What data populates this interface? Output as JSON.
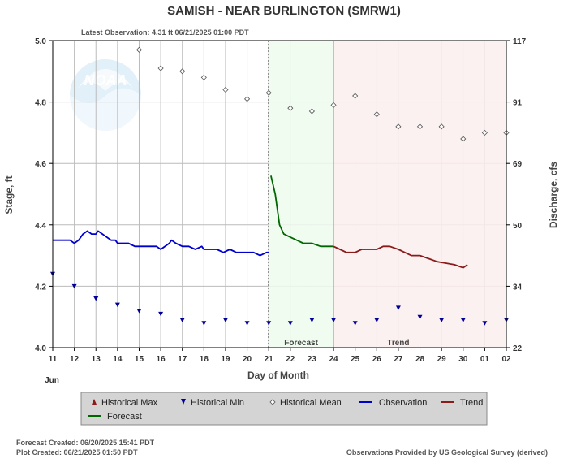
{
  "header": {
    "title": "SAMISH - NEAR BURLINGTON  (SMRW1)",
    "latest_observation": "Latest Observation: 4.31 ft 06/21/2025 01:00 PDT"
  },
  "logo_text": "NOAA",
  "chart_data": {
    "type": "line",
    "title": "SAMISH - NEAR BURLINGTON  (SMRW1)",
    "xlabel": "Day of Month",
    "month_label": "Jun",
    "ylabel_left": "Stage, ft",
    "ylabel_right": "Discharge, cfs",
    "x_ticks": [
      "11",
      "12",
      "13",
      "14",
      "15",
      "16",
      "17",
      "18",
      "19",
      "20",
      "21",
      "22",
      "23",
      "24",
      "25",
      "26",
      "27",
      "28",
      "29",
      "30",
      "01",
      "02"
    ],
    "xlim": [
      11,
      32
    ],
    "ylim_left": [
      4.0,
      5.0
    ],
    "y_ticks_left": [
      "4.0",
      "4.2",
      "4.4",
      "4.6",
      "4.8",
      "5.0"
    ],
    "y_ticks_right": [
      "22",
      "34",
      "50",
      "69",
      "91",
      "117"
    ],
    "grid": true,
    "zones": {
      "observed_end": 21.0,
      "forecast_start": 21.0,
      "forecast_end": 24.0,
      "forecast_label": "Forecast",
      "forecast_color": "#effcef",
      "trend_start": 24.0,
      "trend_end": 32.0,
      "trend_label": "Trend",
      "trend_color": "#fcefef"
    },
    "series": [
      {
        "name": "Observation",
        "color": "#0000cc",
        "x": [
          11.0,
          11.2,
          11.4,
          11.6,
          11.8,
          12.0,
          12.2,
          12.4,
          12.6,
          12.8,
          13.0,
          13.1,
          13.3,
          13.5,
          13.7,
          13.9,
          14.0,
          14.2,
          14.5,
          14.8,
          15.0,
          15.2,
          15.5,
          15.8,
          16.0,
          16.2,
          16.4,
          16.5,
          16.7,
          17.0,
          17.3,
          17.6,
          17.9,
          18.0,
          18.3,
          18.6,
          18.9,
          19.2,
          19.5,
          19.8,
          20.0,
          20.3,
          20.6,
          20.9,
          21.0
        ],
        "y": [
          4.35,
          4.35,
          4.35,
          4.35,
          4.35,
          4.34,
          4.35,
          4.37,
          4.38,
          4.37,
          4.37,
          4.38,
          4.37,
          4.36,
          4.35,
          4.35,
          4.34,
          4.34,
          4.34,
          4.33,
          4.33,
          4.33,
          4.33,
          4.33,
          4.32,
          4.33,
          4.34,
          4.35,
          4.34,
          4.33,
          4.33,
          4.32,
          4.33,
          4.32,
          4.32,
          4.32,
          4.31,
          4.32,
          4.31,
          4.31,
          4.31,
          4.31,
          4.3,
          4.31,
          4.31
        ]
      },
      {
        "name": "Forecast",
        "color": "#006600",
        "x": [
          21.1,
          21.3,
          21.5,
          21.7,
          22.0,
          22.3,
          22.6,
          23.0,
          23.4,
          23.8,
          24.0
        ],
        "y": [
          4.56,
          4.5,
          4.4,
          4.37,
          4.36,
          4.35,
          4.34,
          4.34,
          4.33,
          4.33,
          4.33
        ]
      },
      {
        "name": "Trend",
        "color": "#8b1a1a",
        "x": [
          24.0,
          24.3,
          24.6,
          25.0,
          25.3,
          25.6,
          26.0,
          26.3,
          26.6,
          27.0,
          27.3,
          27.6,
          28.0,
          28.4,
          28.8,
          29.2,
          29.6,
          30.0,
          30.2
        ],
        "y": [
          4.33,
          4.32,
          4.31,
          4.31,
          4.32,
          4.32,
          4.32,
          4.33,
          4.33,
          4.32,
          4.31,
          4.3,
          4.3,
          4.29,
          4.28,
          4.275,
          4.27,
          4.26,
          4.27
        ]
      },
      {
        "name": "Historical Mean",
        "marker": "diamond",
        "color": "#555555",
        "x": [
          15,
          16,
          17,
          18,
          19,
          20,
          21,
          22,
          23,
          24,
          25,
          26,
          27,
          28,
          29,
          30,
          31,
          32
        ],
        "y": [
          4.97,
          4.91,
          4.9,
          4.88,
          4.84,
          4.81,
          4.83,
          4.78,
          4.77,
          4.79,
          4.82,
          4.76,
          4.72,
          4.72,
          4.72,
          4.68,
          4.7,
          4.7
        ]
      },
      {
        "name": "Historical Min",
        "marker": "triangle-down",
        "color": "#000099",
        "x": [
          11,
          12,
          13,
          14,
          15,
          16,
          17,
          18,
          19,
          20,
          21,
          22,
          23,
          24,
          25,
          26,
          27,
          28,
          29,
          30,
          31,
          32
        ],
        "y": [
          4.24,
          4.2,
          4.16,
          4.14,
          4.12,
          4.11,
          4.09,
          4.08,
          4.09,
          4.08,
          4.08,
          4.08,
          4.09,
          4.09,
          4.08,
          4.09,
          4.13,
          4.1,
          4.09,
          4.09,
          4.08,
          4.09
        ]
      }
    ],
    "legend": [
      {
        "label": "Historical Max",
        "symbol": "triangle-up",
        "color": "#8b1a1a"
      },
      {
        "label": "Historical Min",
        "symbol": "triangle-down",
        "color": "#000099"
      },
      {
        "label": "Historical Mean",
        "symbol": "diamond",
        "color": "#555555"
      },
      {
        "label": "Observation",
        "symbol": "line",
        "color": "#0000cc"
      },
      {
        "label": "Trend",
        "symbol": "line",
        "color": "#8b1a1a"
      },
      {
        "label": "Forecast",
        "symbol": "line",
        "color": "#006600"
      }
    ]
  },
  "footer": {
    "forecast_created": "Forecast Created: 06/20/2025 15:41 PDT",
    "plot_created": "Plot Created: 06/21/2025 01:50 PDT",
    "credit": "Observations Provided by US Geological Survey (derived)"
  }
}
